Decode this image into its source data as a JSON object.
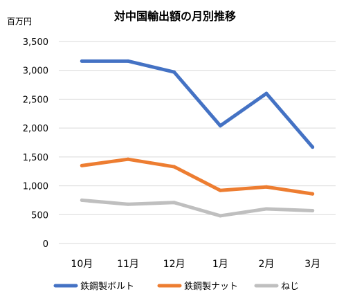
{
  "chart_data": {
    "type": "line",
    "title": "対中国輸出額の月別推移",
    "unit_label": "百万円",
    "categories": [
      "10月",
      "11月",
      "12月",
      "1月",
      "2月",
      "3月"
    ],
    "ylim": [
      0,
      3500
    ],
    "yticks": [
      "0",
      "500",
      "1,000",
      "1,500",
      "2,000",
      "2,500",
      "3,000",
      "3,500"
    ],
    "ytick_values": [
      0,
      500,
      1000,
      1500,
      2000,
      2500,
      3000,
      3500
    ],
    "grid": true,
    "legend_position": "bottom",
    "series": [
      {
        "name": "鉄鋼製ボルト",
        "color": "#4472C4",
        "values": [
          3160,
          3160,
          2970,
          2040,
          2600,
          1670
        ]
      },
      {
        "name": "鉄鋼製ナット",
        "color": "#ED7D31",
        "values": [
          1350,
          1460,
          1330,
          920,
          980,
          860
        ]
      },
      {
        "name": "ねじ",
        "color": "#BFBFBF",
        "values": [
          750,
          680,
          710,
          480,
          600,
          570
        ]
      }
    ]
  }
}
